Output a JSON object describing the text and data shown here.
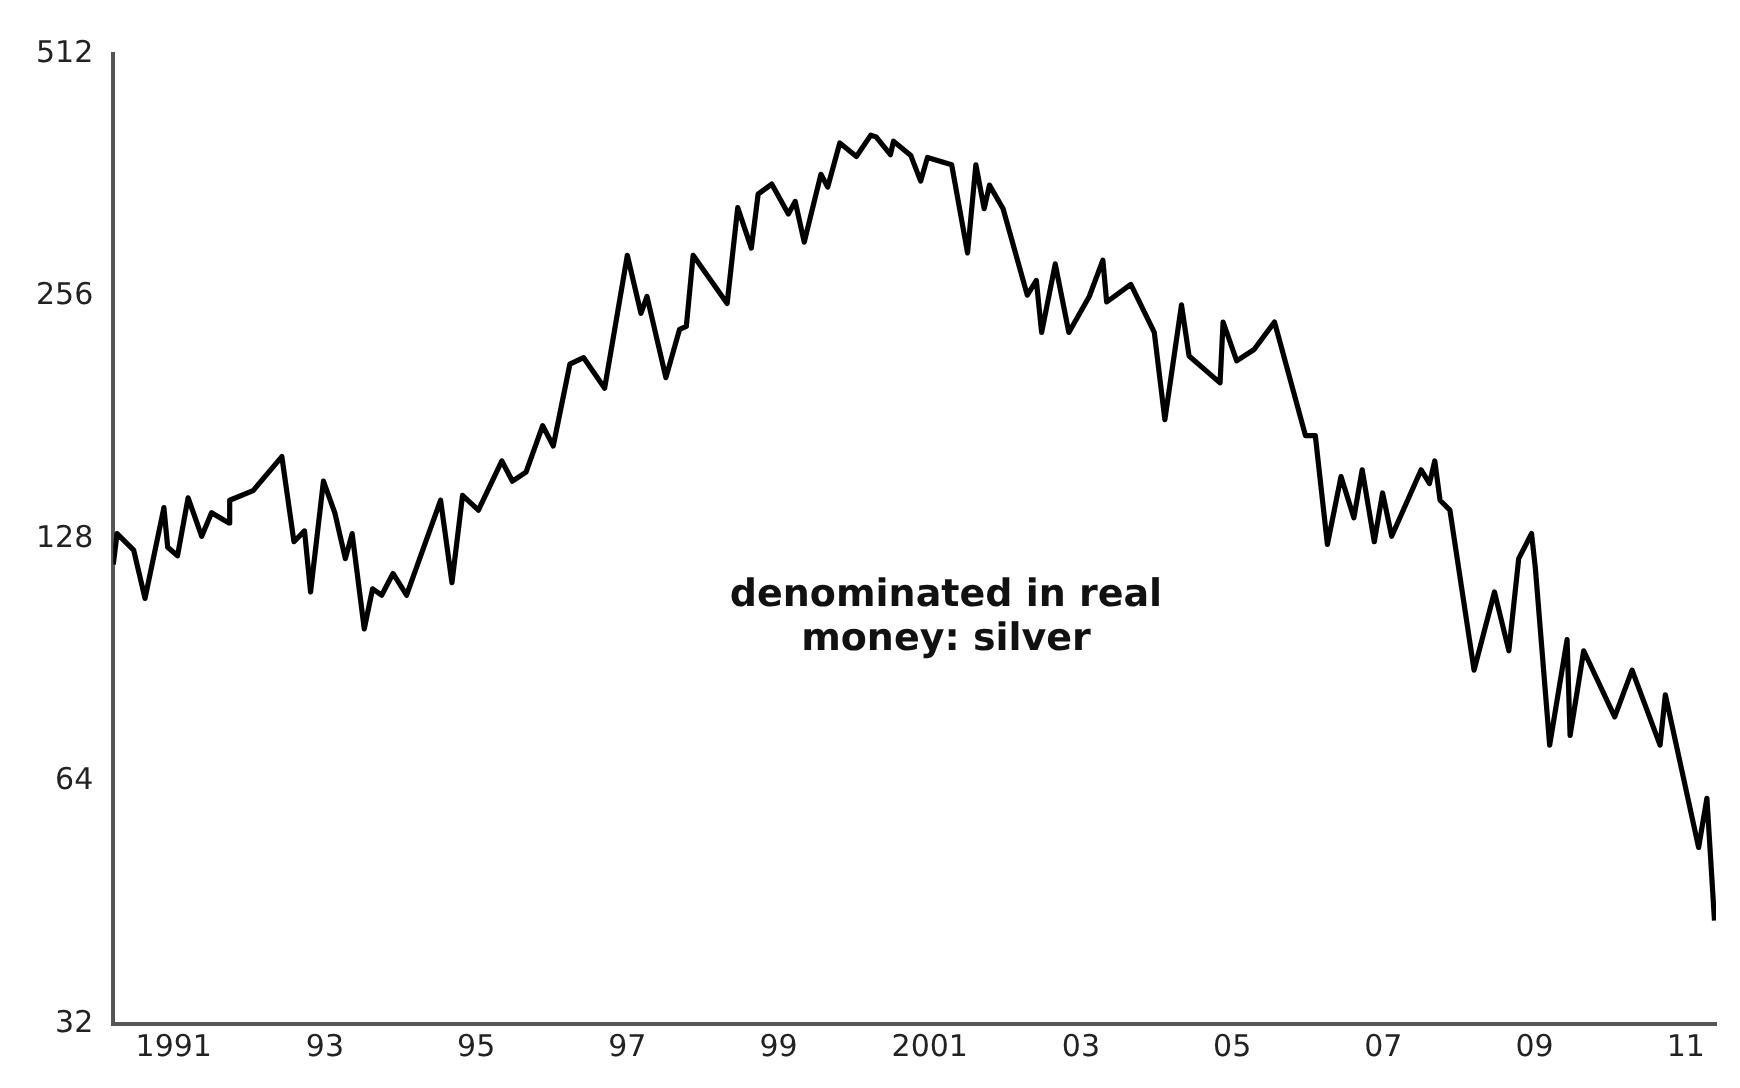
{
  "chart_data": {
    "type": "line",
    "title": "denominated in real money: silver",
    "x": [
      1990.2,
      1990.25,
      1990.47,
      1990.62,
      1990.87,
      1990.92,
      1991.05,
      1991.19,
      1991.37,
      1991.5,
      1991.73,
      1991.74,
      1992.05,
      1992.43,
      1992.59,
      1992.73,
      1992.81,
      1992.98,
      1993.13,
      1993.27,
      1993.36,
      1993.52,
      1993.63,
      1993.75,
      1993.9,
      1994.08,
      1994.53,
      1994.68,
      1994.82,
      1995.03,
      1995.34,
      1995.48,
      1995.66,
      1995.88,
      1996.02,
      1996.24,
      1996.42,
      1996.7,
      1997.0,
      1997.18,
      1997.26,
      1997.51,
      1997.69,
      1997.78,
      1997.87,
      1998.32,
      1998.46,
      1998.64,
      1998.73,
      1998.91,
      1999.13,
      1999.22,
      1999.34,
      1999.56,
      1999.65,
      1999.81,
      2000.03,
      2000.22,
      2000.29,
      2000.48,
      2000.52,
      2000.75,
      2000.88,
      2000.97,
      2001.29,
      2001.5,
      2001.61,
      2001.72,
      2001.79,
      2001.97,
      2002.29,
      2002.41,
      2002.48,
      2002.66,
      2002.84,
      2003.11,
      2003.29,
      2003.34,
      2003.66,
      2003.97,
      2004.11,
      2004.33,
      2004.43,
      2004.84,
      2004.88,
      2005.06,
      2005.29,
      2005.56,
      2005.97,
      2006.1,
      2006.26,
      2006.44,
      2006.61,
      2006.72,
      2006.88,
      2006.99,
      2007.11,
      2007.5,
      2007.61,
      2007.68,
      2007.75,
      2007.88,
      2008.2,
      2008.47,
      2008.66,
      2008.79,
      2008.96,
      2009.01,
      2009.2,
      2009.43,
      2009.47,
      2009.65,
      2010.06,
      2010.29,
      2010.66,
      2010.73,
      2011.17,
      2011.28,
      2011.38
    ],
    "series": [
      {
        "color": "#000000",
        "values": [
          119,
          130,
          124,
          108,
          140,
          125,
          122,
          144,
          129,
          138,
          134,
          143,
          147,
          162,
          127,
          131,
          110,
          151,
          138,
          121,
          130,
          99,
          111,
          109,
          116,
          109,
          143,
          113,
          145,
          139,
          160,
          151,
          155,
          177,
          167,
          211,
          215,
          197,
          288,
          244,
          256,
          203,
          233,
          235,
          288,
          251,
          330,
          294,
          343,
          353,
          324,
          336,
          299,
          363,
          350,
          397,
          382,
          406,
          404,
          384,
          399,
          383,
          356,
          381,
          373,
          290,
          373,
          329,
          352,
          329,
          257,
          268,
          231,
          281,
          231,
          256,
          284,
          252,
          265,
          231,
          180,
          250,
          216,
          200,
          238,
          213,
          220,
          238,
          172,
          172,
          126,
          153,
          136,
          156,
          127,
          146,
          129,
          156,
          150,
          160,
          143,
          139,
          88,
          110,
          93,
          121,
          130,
          118,
          71,
          96,
          73,
          93,
          77,
          88,
          71,
          82,
          53,
          61,
          43
        ]
      }
    ],
    "xlim": [
      1990.2,
      2011.4
    ],
    "xticks": [
      {
        "value": 1991,
        "label": "1991"
      },
      {
        "value": 1993,
        "label": "93"
      },
      {
        "value": 1995,
        "label": "95"
      },
      {
        "value": 1997,
        "label": "97"
      },
      {
        "value": 1999,
        "label": "99"
      },
      {
        "value": 2001,
        "label": "2001"
      },
      {
        "value": 2003,
        "label": "03"
      },
      {
        "value": 2005,
        "label": "05"
      },
      {
        "value": 2007,
        "label": "07"
      },
      {
        "value": 2009,
        "label": "09"
      },
      {
        "value": 2011,
        "label": "11"
      }
    ],
    "ylim": [
      32,
      512
    ],
    "yticks": [
      32,
      64,
      128,
      256,
      512
    ],
    "log": true,
    "grid": false,
    "legend": false,
    "marker": "none",
    "line_style": "solid"
  }
}
